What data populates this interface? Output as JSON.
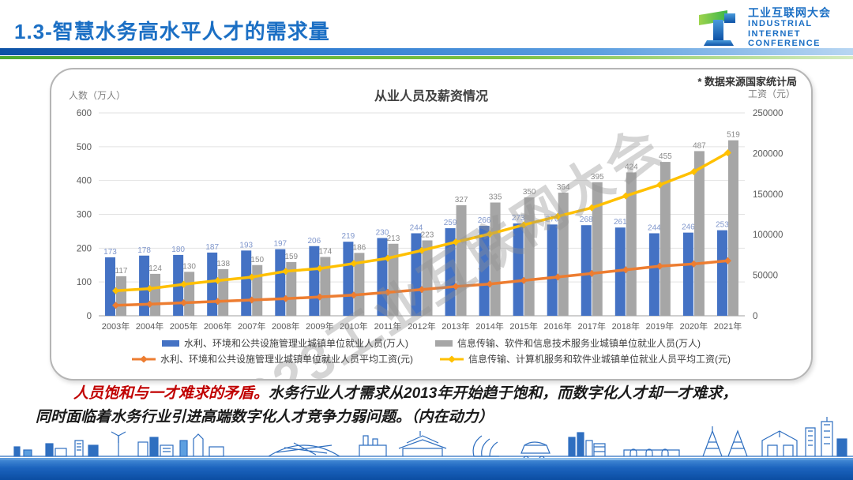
{
  "slide": {
    "title": "1.3-智慧水务高水平人才的需求量",
    "logo": {
      "cn": "工业互联网大会",
      "en1": "INDUSTRIAL",
      "en2": "INTERNET",
      "en3": "CONFERENCE"
    },
    "source_note": "* 数据来源国家统计局",
    "watermark": "2023工业互联网大会",
    "commentary": {
      "highlight": "人员饱和与一才难求的矛盾。",
      "line1": "水务行业人才需求从2013年开始趋于饱和，而数字化人才却一才难求，",
      "line2": "同时面临着水务行业引进高端数字化人才竞争力弱问题。（内在动力）"
    }
  },
  "colors": {
    "accent_blue": "#1b6fc4",
    "divider_green": "#7cc142",
    "bar_blue": "#4472C4",
    "bar_gray": "#A6A6A6",
    "line_orange": "#ED7D31",
    "line_yellow": "#FFC000",
    "highlight_red": "#C00000"
  },
  "chart_data": {
    "type": "bar",
    "subtype": "combo bar+line, dual axis",
    "title": "从业人员及薪资情况",
    "grid": true,
    "legend_position": "bottom",
    "left_axis": {
      "label": "人数（万人）",
      "min": 0,
      "max": 600,
      "ticks": [
        0,
        100,
        200,
        300,
        400,
        500,
        600
      ]
    },
    "right_axis": {
      "label": "工资（元）",
      "min": 0,
      "max": 250000,
      "ticks": [
        0,
        50000,
        100000,
        150000,
        200000,
        250000
      ]
    },
    "categories": [
      "2003年",
      "2004年",
      "2005年",
      "2006年",
      "2007年",
      "2008年",
      "2009年",
      "2010年",
      "2011年",
      "2012年",
      "2013年",
      "2014年",
      "2015年",
      "2016年",
      "2017年",
      "2018年",
      "2019年",
      "2020年",
      "2021年"
    ],
    "series": [
      {
        "name": "水利、环境和公共设施管理业城镇单位就业人员(万人)",
        "type": "bar",
        "axis": "left",
        "color": "#4472C4",
        "label_color": "#8097CC",
        "values": [
          173,
          178,
          180,
          187,
          193,
          197,
          206,
          219,
          230,
          244,
          259,
          266,
          273,
          270,
          268,
          261,
          244,
          246,
          253
        ]
      },
      {
        "name": "信息传输、软件和信息技术服务业城镇单位就业人员(万人)",
        "type": "bar",
        "axis": "left",
        "color": "#A6A6A6",
        "label_color": "#8A8A8A",
        "values": [
          117,
          124,
          130,
          138,
          150,
          159,
          174,
          186,
          213,
          223,
          327,
          335,
          350,
          364,
          395,
          424,
          455,
          487,
          519
        ]
      },
      {
        "name": "水利、环境和公共设施管理业城镇单位就业人员平均工资(元)",
        "type": "line",
        "axis": "right",
        "color": "#ED7D31",
        "values_estimated": true,
        "values": [
          12900,
          14300,
          16000,
          17700,
          19400,
          21100,
          23200,
          25500,
          28900,
          32300,
          36100,
          39200,
          43500,
          47800,
          52200,
          56700,
          61200,
          63900,
          67800
        ]
      },
      {
        "name": "信息传输、计算机服务和软件业城镇单位就业人员平均工资(元)",
        "type": "line",
        "axis": "right",
        "color": "#FFC000",
        "values_estimated": true,
        "values": [
          30900,
          33400,
          38800,
          43400,
          47700,
          54900,
          58200,
          64400,
          70900,
          80500,
          90900,
          100800,
          112000,
          122500,
          133100,
          147700,
          161400,
          177500,
          200900
        ]
      }
    ]
  }
}
